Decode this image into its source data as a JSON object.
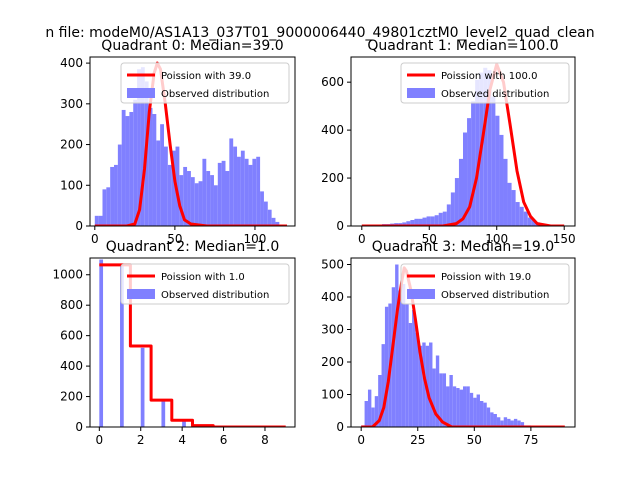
{
  "figure": {
    "suptitle": "n file: modeM0/AS1A13_037T01_9000006440_49801cztM0_level2_quad_clean"
  },
  "colors": {
    "hist": "#8080ff",
    "fit": "#ff0000",
    "axes": "#000000",
    "background": "#ffffff"
  },
  "chart_data": [
    {
      "type": "histogram",
      "title": "Quadrant 0: Median=39.0",
      "xlim": [
        -3,
        125
      ],
      "ylim": [
        0,
        415
      ],
      "xticks": [
        0,
        50,
        100
      ],
      "yticks": [
        0,
        100,
        200,
        300,
        400
      ],
      "legend": [
        "Poission with 39.0",
        "Observed distribution"
      ],
      "legend_position": "upper right",
      "hist": {
        "name": "Observed distribution",
        "start": 0,
        "bin_width": 2.4,
        "values": [
          25,
          25,
          90,
          95,
          145,
          150,
          200,
          285,
          270,
          280,
          310,
          385,
          390,
          355,
          290,
          275,
          210,
          250,
          195,
          150,
          185,
          195,
          125,
          145,
          135,
          120,
          105,
          110,
          165,
          135,
          125,
          100,
          155,
          160,
          135,
          215,
          195,
          170,
          185,
          165,
          150,
          165,
          170,
          85,
          60,
          40,
          20,
          10
        ]
      },
      "fit": {
        "name": "Poission with 39.0",
        "x": [
          0,
          20,
          25,
          28,
          31,
          34,
          37,
          39,
          41,
          44,
          47,
          50,
          53,
          56,
          60,
          70,
          120
        ],
        "y": [
          0,
          0,
          5,
          40,
          140,
          280,
          375,
          400,
          385,
          300,
          200,
          110,
          50,
          15,
          5,
          0,
          0
        ]
      }
    },
    {
      "type": "histogram",
      "title": "Quadrant 1: Median=100.0",
      "xlim": [
        -8,
        158
      ],
      "ylim": [
        0,
        705
      ],
      "xticks": [
        0,
        50,
        100,
        150
      ],
      "yticks": [
        0,
        200,
        400,
        600
      ],
      "legend": [
        "Poission with 100.0",
        "Observed distribution"
      ],
      "legend_position": "upper right",
      "hist": {
        "name": "Observed distribution",
        "start": 0,
        "bin_width": 3,
        "values": [
          2,
          2,
          3,
          5,
          5,
          8,
          8,
          10,
          12,
          12,
          15,
          20,
          25,
          30,
          30,
          35,
          40,
          40,
          45,
          55,
          60,
          90,
          140,
          200,
          280,
          390,
          450,
          520,
          610,
          640,
          660,
          650,
          540,
          460,
          380,
          280,
          180,
          150,
          100,
          80,
          60,
          35,
          25,
          15,
          10,
          5,
          3,
          2,
          2,
          1
        ]
      },
      "fit": {
        "name": "Poission with 100.0",
        "x": [
          0,
          60,
          70,
          75,
          80,
          85,
          90,
          95,
          100,
          105,
          110,
          115,
          120,
          125,
          130,
          140,
          150
        ],
        "y": [
          0,
          0,
          10,
          30,
          80,
          200,
          380,
          570,
          675,
          600,
          420,
          230,
          100,
          40,
          10,
          0,
          0
        ]
      }
    },
    {
      "type": "histogram",
      "title": "Quadrant 2: Median=1.0",
      "xlim": [
        -0.45,
        9.45
      ],
      "ylim": [
        0,
        1110
      ],
      "xticks": [
        0,
        2,
        4,
        6,
        8
      ],
      "yticks": [
        0,
        200,
        400,
        600,
        800,
        1000
      ],
      "legend": [
        "Poission with 1.0",
        "Observed distribution"
      ],
      "legend_position": "upper right",
      "hist": {
        "name": "Observed distribution",
        "bars": [
          {
            "x": 0,
            "value": 1100
          },
          {
            "x": 1,
            "value": 1060
          },
          {
            "x": 2,
            "value": 520
          },
          {
            "x": 3,
            "value": 170
          },
          {
            "x": 4,
            "value": 40
          }
        ],
        "bar_width": 0.18
      },
      "fit": {
        "name": "Poission with 1.0",
        "x": [
          0,
          1.5,
          1.5,
          2.5,
          2.5,
          3.5,
          3.5,
          4.5,
          4.5,
          5.5,
          5.5,
          9
        ],
        "y": [
          1065,
          1065,
          532,
          532,
          177,
          177,
          44,
          44,
          9,
          9,
          0,
          0
        ]
      }
    },
    {
      "type": "histogram",
      "title": "Quadrant 3: Median=19.0",
      "xlim": [
        -4.5,
        94.5
      ],
      "ylim": [
        0,
        520
      ],
      "xticks": [
        0,
        25,
        50,
        75
      ],
      "yticks": [
        0,
        100,
        200,
        300,
        400,
        500
      ],
      "legend": [
        "Poission with 19.0",
        "Observed distribution"
      ],
      "legend_position": "upper right",
      "hist": {
        "name": "Observed distribution",
        "start": 0,
        "bin_width": 1.5,
        "values": [
          5,
          80,
          115,
          60,
          95,
          160,
          255,
          370,
          380,
          430,
          500,
          420,
          440,
          380,
          320,
          360,
          290,
          250,
          260,
          250,
          260,
          180,
          220,
          165,
          165,
          125,
          160,
          125,
          120,
          115,
          125,
          125,
          105,
          90,
          100,
          80,
          75,
          60,
          45,
          40,
          30,
          20,
          30,
          25,
          20,
          25,
          20,
          15,
          5,
          5
        ]
      },
      "fit": {
        "name": "Poission with 19.0",
        "x": [
          0,
          5,
          8,
          10,
          12,
          14,
          16,
          18,
          19,
          20,
          22,
          24,
          26,
          28,
          30,
          33,
          36,
          40,
          90
        ],
        "y": [
          0,
          0,
          20,
          60,
          140,
          250,
          360,
          450,
          490,
          480,
          420,
          330,
          230,
          150,
          90,
          40,
          15,
          0,
          0
        ]
      }
    }
  ]
}
